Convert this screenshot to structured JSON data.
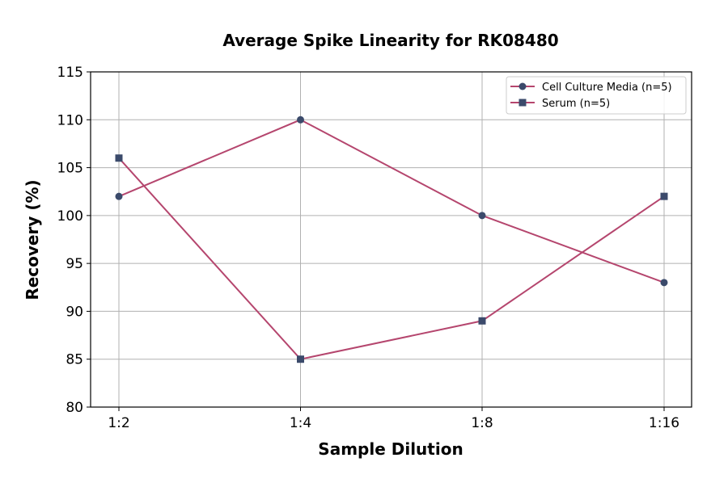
{
  "chart_data": {
    "type": "line",
    "title": "Average Spike Linearity for RK08480",
    "xlabel": "Sample Dilution",
    "ylabel": "Recovery (%)",
    "categories": [
      "1:2",
      "1:4",
      "1:8",
      "1:16"
    ],
    "ylim": [
      80,
      115
    ],
    "yticks": [
      80,
      85,
      90,
      95,
      100,
      105,
      110,
      115
    ],
    "grid": true,
    "legend_position": "top-right",
    "series": [
      {
        "name": "Cell Culture Media (n=5)",
        "values": [
          102,
          110,
          100,
          93
        ],
        "marker": "circle",
        "line_color": "#b5466e",
        "marker_color": "#3b4a6b"
      },
      {
        "name": "Serum (n=5)",
        "values": [
          106,
          85,
          89,
          102
        ],
        "marker": "square",
        "line_color": "#b5466e",
        "marker_color": "#3b4a6b"
      }
    ]
  }
}
